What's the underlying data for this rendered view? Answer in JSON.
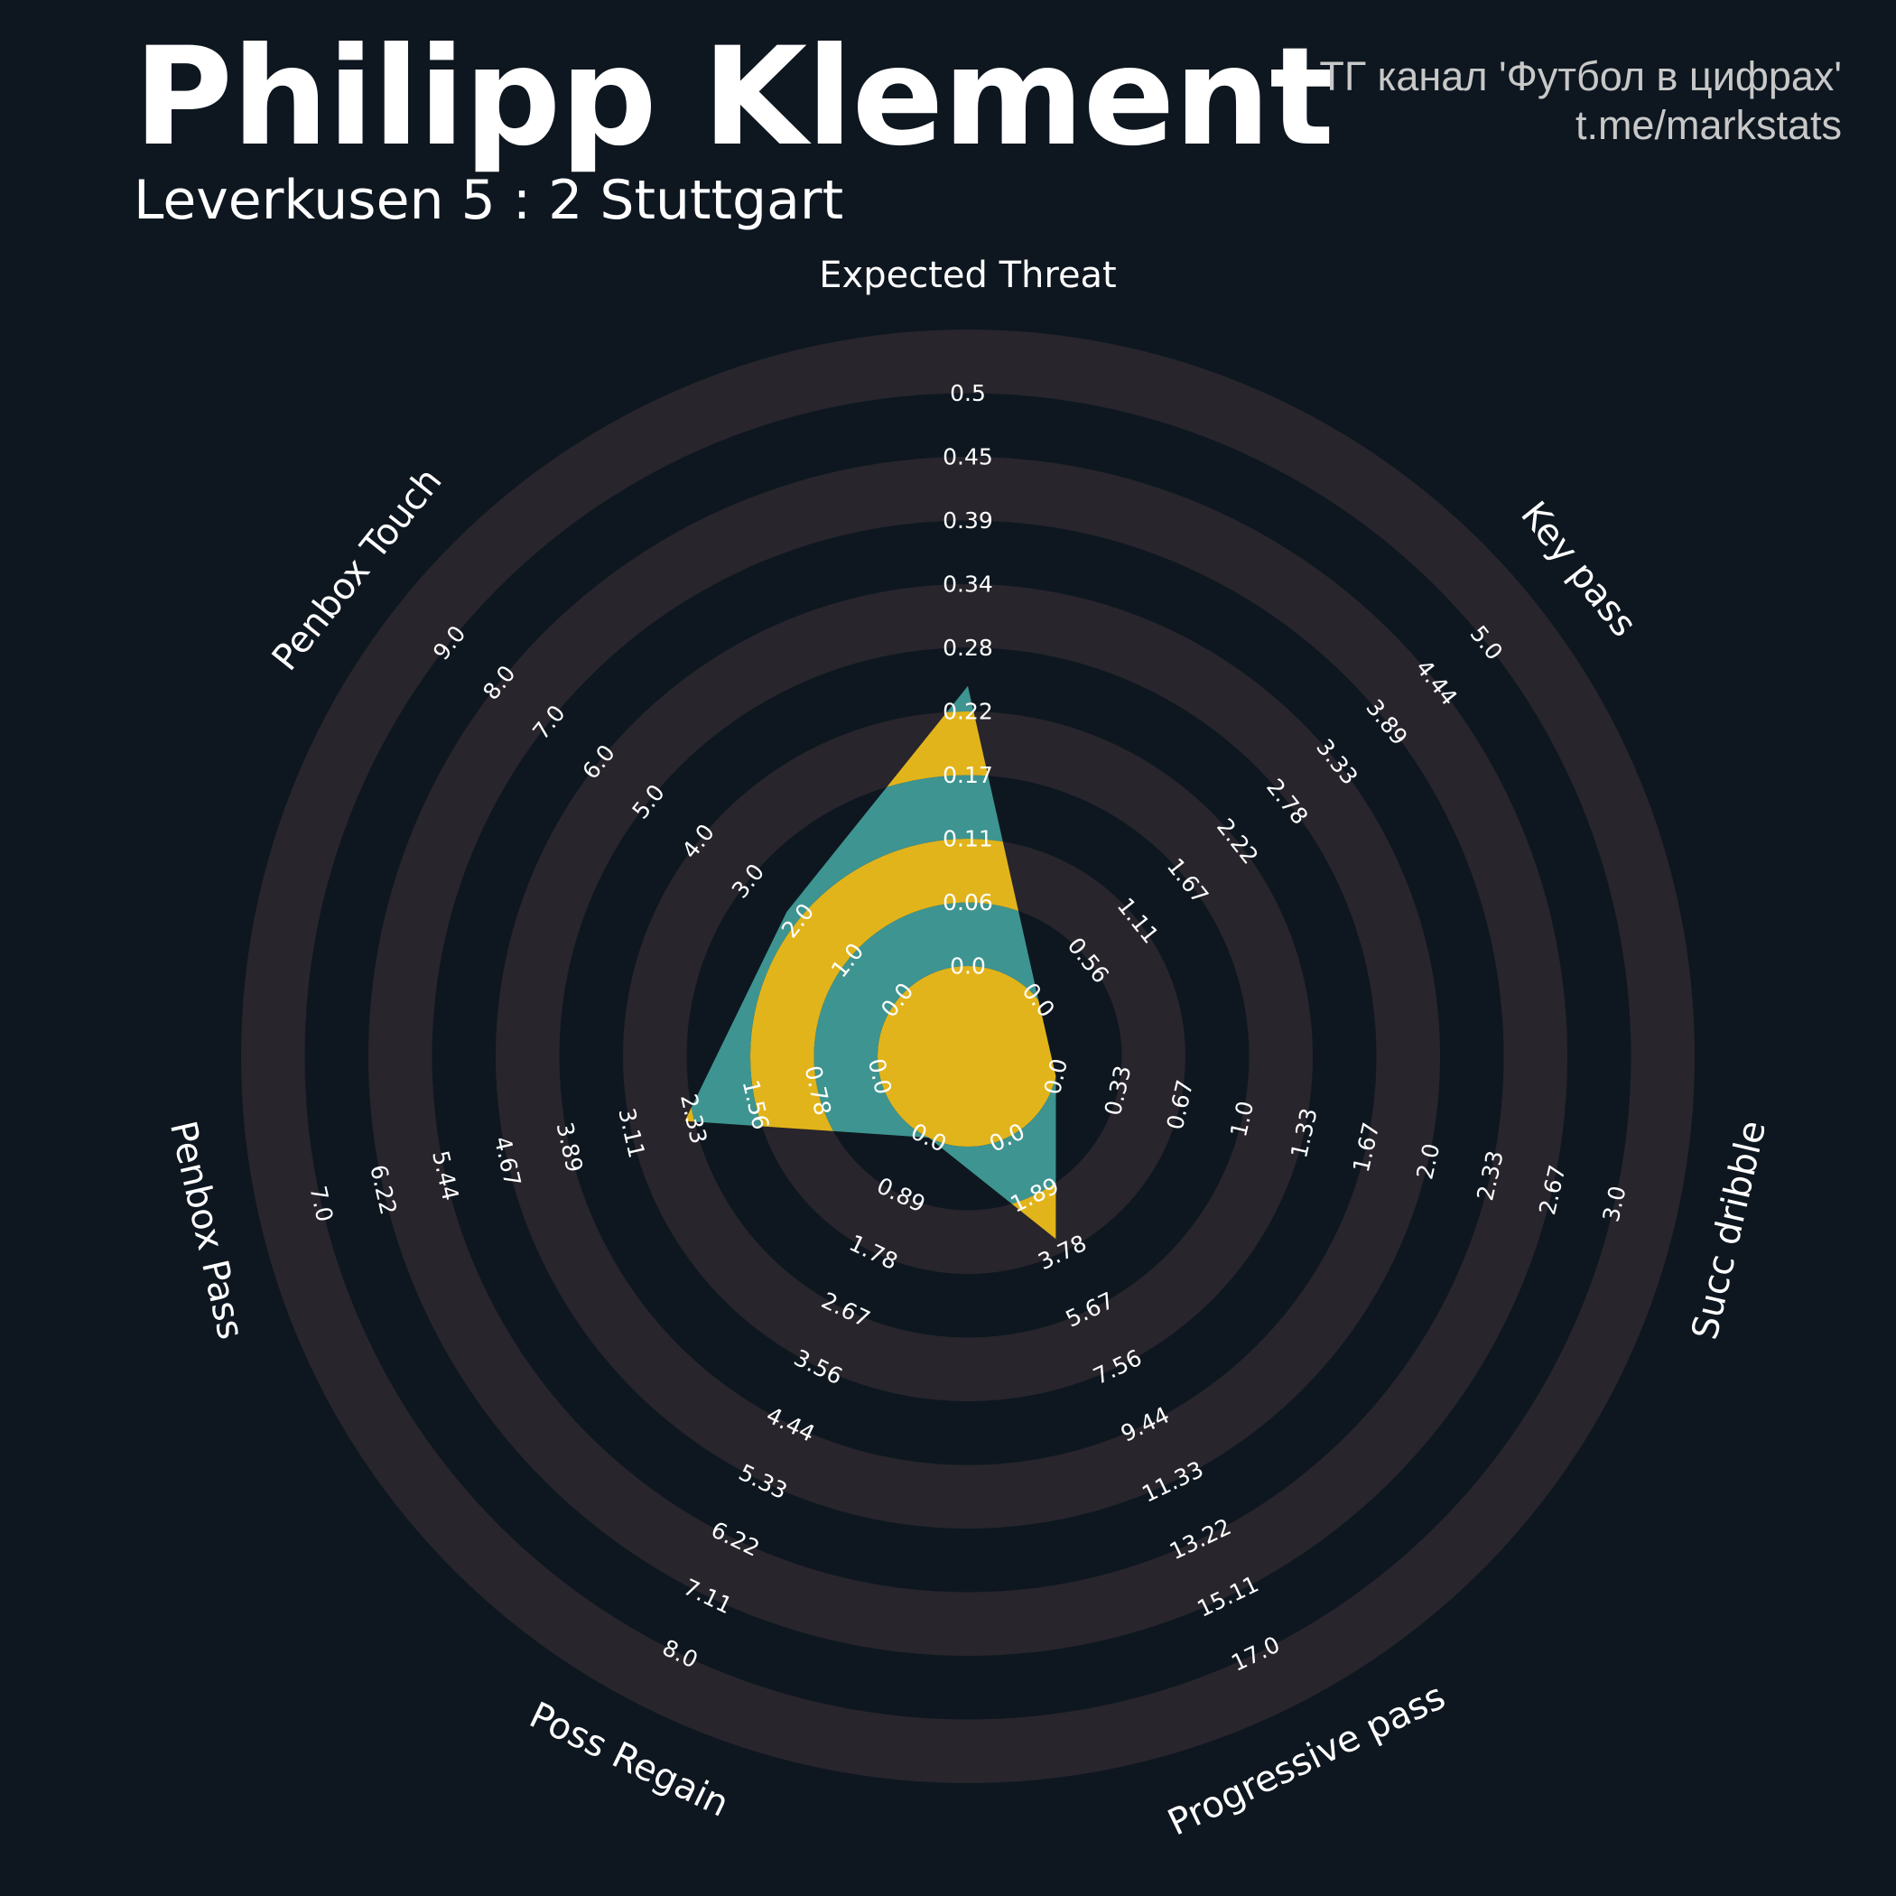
{
  "header": {
    "title": "Philipp Klement",
    "subtitle": "Leverkusen 5 : 2 Stuttgart",
    "credit_line1": "TГ канал 'Футбол в цифрах'",
    "credit_line2": "t.me/markstats"
  },
  "colors": {
    "background": "#0e1720",
    "ring": "#28252c",
    "value_primary": "#e2b41b",
    "value_secondary": "#3e9490",
    "text": "#ffffff",
    "credit": "#c8c8c8"
  },
  "chart_data": {
    "type": "radar",
    "ring_count": 10,
    "params": [
      {
        "name": "Expected Threat",
        "min": 0.0,
        "max": 0.5,
        "value": 0.22,
        "ticks": [
          "0.0",
          "0.06",
          "0.11",
          "0.17",
          "0.22",
          "0.28",
          "0.34",
          "0.39",
          "0.45",
          "0.5"
        ]
      },
      {
        "name": "Key pass",
        "min": 0.0,
        "max": 5.0,
        "value": 0.0,
        "ticks": [
          "0.0",
          "0.56",
          "1.11",
          "1.67",
          "2.22",
          "2.78",
          "3.33",
          "3.89",
          "4.44",
          "5.0"
        ]
      },
      {
        "name": "Succ dribble",
        "min": 0.0,
        "max": 3.0,
        "value": 0.0,
        "ticks": [
          "0.0",
          "0.33",
          "0.67",
          "1.0",
          "1.33",
          "1.67",
          "2.0",
          "2.33",
          "2.67",
          "3.0"
        ]
      },
      {
        "name": "Progressive pass",
        "min": 0.0,
        "max": 17.0,
        "value": 3.0,
        "ticks": [
          "0.0",
          "1.89",
          "3.78",
          "5.67",
          "7.56",
          "9.44",
          "11.33",
          "13.22",
          "15.11",
          "17.0"
        ]
      },
      {
        "name": "Poss Regain",
        "min": 0.0,
        "max": 8.0,
        "value": 0.0,
        "ticks": [
          "0.0",
          "0.89",
          "1.78",
          "2.67",
          "3.56",
          "4.44",
          "5.33",
          "6.22",
          "7.11",
          "8.0"
        ]
      },
      {
        "name": "Penbox Pass",
        "min": 0.0,
        "max": 7.0,
        "value": 2.2,
        "ticks": [
          "0.0",
          "0.78",
          "1.56",
          "2.33",
          "3.11",
          "3.89",
          "4.67",
          "5.44",
          "6.22",
          "7.0"
        ]
      },
      {
        "name": "Penbox Touch",
        "min": 0.0,
        "max": 9.0,
        "value": 2.0,
        "ticks": [
          "0.0",
          "1.0",
          "2.0",
          "3.0",
          "4.0",
          "5.0",
          "6.0",
          "7.0",
          "8.0",
          "9.0"
        ]
      }
    ]
  }
}
